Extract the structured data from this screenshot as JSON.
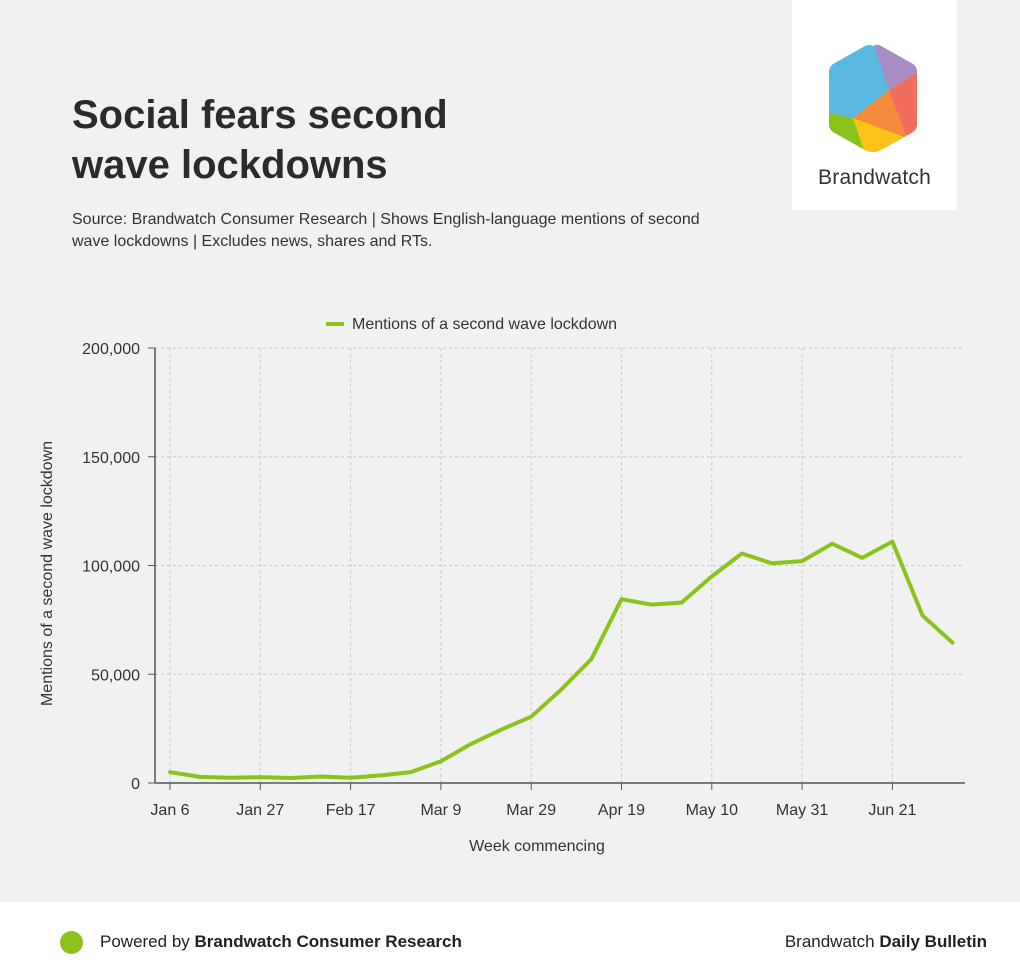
{
  "header": {
    "title_line1": "Social fears second",
    "title_line2": "wave lockdowns",
    "subtitle_line1": "Source: Brandwatch Consumer Research | Shows English-language mentions of second",
    "subtitle_line2": "wave lockdowns  | Excludes news, shares and RTs."
  },
  "logo": {
    "text": "Brandwatch",
    "icon": "brandwatch-hexagon-logo"
  },
  "footer": {
    "left_prefix": "Powered by ",
    "left_bold": "Brandwatch Consumer Research",
    "right_prefix": "Brandwatch ",
    "right_bold": "Daily Bulletin",
    "dot_icon": "green-dot-icon"
  },
  "colors": {
    "line": "#8bc31c",
    "grid": "#c8c8c8",
    "axis": "#555555",
    "panel": "#f1f1f1"
  },
  "chart_data": {
    "type": "line",
    "title": "",
    "xlabel": "Week commencing",
    "ylabel": "Mentions of a second wave lockdown",
    "ylim": [
      0,
      200000
    ],
    "yticks": [
      0,
      50000,
      100000,
      150000,
      200000
    ],
    "ytick_labels": [
      "0",
      "50,000",
      "100,000",
      "150,000",
      "200,000"
    ],
    "xtick_labels": [
      "Jan 6",
      "Jan 27",
      "Feb 17",
      "Mar 9",
      "Mar 29",
      "Apr 19",
      "May 10",
      "May 31",
      "Jun 21"
    ],
    "xtick_indices": [
      0,
      3,
      6,
      9,
      12,
      15,
      18,
      21,
      24
    ],
    "legend": {
      "position": "top-center"
    },
    "series": [
      {
        "name": "Mentions of a second wave lockdown",
        "values": [
          5000,
          2800,
          2400,
          2700,
          2300,
          3000,
          2400,
          3500,
          5000,
          10000,
          18000,
          24500,
          30500,
          43000,
          57000,
          84500,
          82000,
          83000,
          95000,
          105500,
          101000,
          102000,
          110000,
          103500,
          111000,
          77000,
          64500
        ]
      }
    ]
  }
}
